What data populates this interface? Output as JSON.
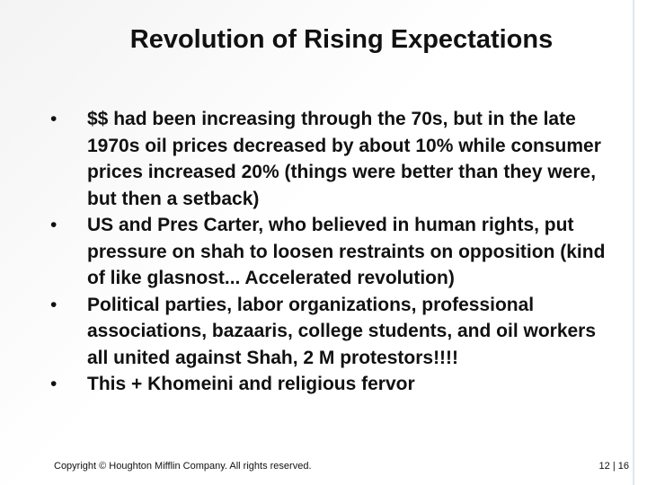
{
  "title": "Revolution of Rising Expectations",
  "bullets": [
    "$$ had been increasing through the 70s, but in the late 1970s oil prices decreased by about 10% while consumer prices increased 20% (things were better than they were, but then a setback)",
    "US and Pres Carter, who believed in human rights, put pressure on shah to loosen restraints on opposition (kind of like glasnost... Accelerated revolution)",
    "Political parties, labor organizations, professional associations, bazaaris, college students, and oil workers all united against Shah, 2 M protestors!!!!",
    "This + Khomeini and religious fervor"
  ],
  "footer": {
    "copyright": "Copyright © Houghton Mifflin Company. All rights reserved.",
    "page": "12 | 16"
  }
}
